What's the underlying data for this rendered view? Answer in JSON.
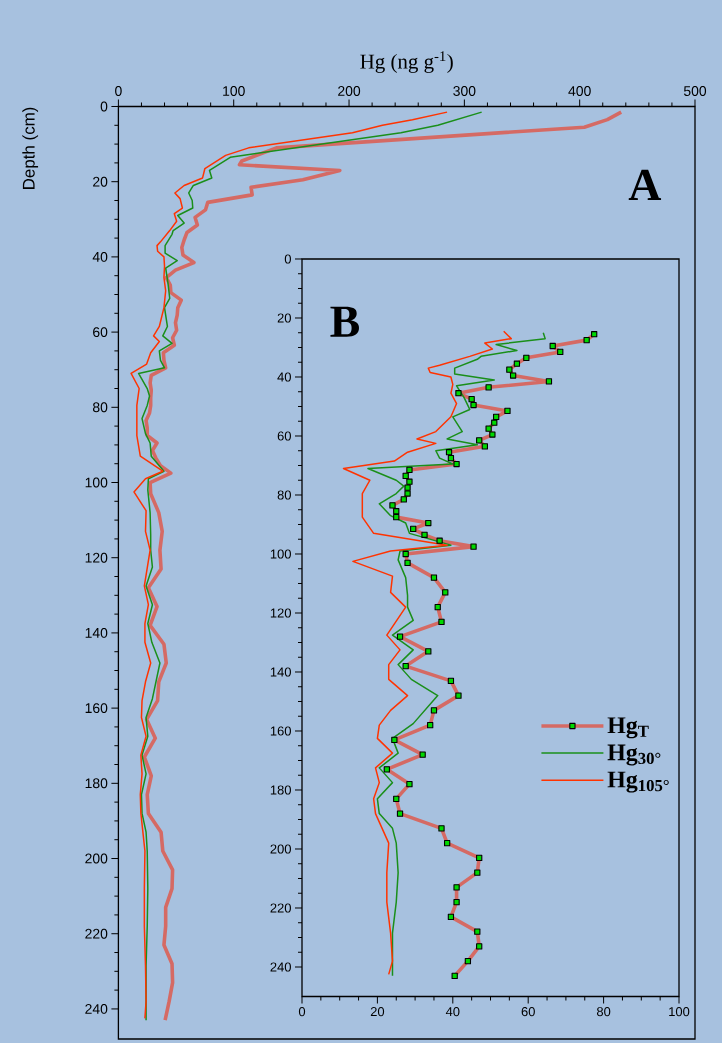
{
  "chart_data": [
    {
      "type": "line",
      "xlabel": "Hg (ng g$^{-1}$)",
      "ylabel": "Depth (cm)",
      "annotations": [
        "A"
      ],
      "xlim": [
        0,
        500
      ],
      "xticks": [
        0,
        100,
        200,
        300,
        400,
        500
      ],
      "ylim": [
        248,
        0
      ],
      "yticks": [
        0,
        20,
        40,
        60,
        80,
        100,
        120,
        140,
        160,
        180,
        200,
        220,
        240
      ],
      "series": [
        {
          "color": "#d56a64",
          "x": [
            436,
            424,
            404,
            137,
            107,
            105,
            192,
            160,
            115,
            116,
            77.5,
            75.5,
            66.5,
            68.5,
            59.5,
            57,
            55,
            56,
            65.5,
            49.5,
            41.5,
            45,
            45.5,
            54.5,
            51.5,
            51,
            49.5,
            50.5,
            47,
            48.5,
            39,
            39.5,
            41,
            28.5,
            27.5,
            28.5,
            28,
            28,
            27,
            24,
            25,
            25,
            33.5,
            29.5,
            32.5,
            36.5,
            45.5,
            27.5,
            28,
            35,
            38,
            36,
            37,
            26,
            33.5,
            27.5,
            39.5,
            41.5,
            35,
            34,
            24.5,
            32,
            22.5,
            28.5,
            25,
            26,
            37,
            38.5,
            47,
            46.5,
            41,
            41,
            39.5,
            46.5,
            47,
            44,
            40.5
          ],
          "values": [
            1.5,
            3.5,
            5.5,
            11,
            14.5,
            15.5,
            17,
            19.5,
            21.5,
            23.5,
            25.5,
            27.5,
            29.5,
            31.5,
            33.5,
            35.5,
            37.5,
            39.5,
            41.5,
            43.5,
            45.5,
            47.5,
            49.5,
            51.5,
            53.5,
            55.5,
            57.5,
            59.5,
            61.5,
            63.5,
            65.5,
            67.5,
            69.5,
            71.5,
            73.5,
            75.5,
            77.5,
            79.5,
            81.5,
            83.5,
            85.5,
            87.5,
            89.5,
            91.5,
            93.5,
            95.5,
            97.5,
            100,
            103,
            108,
            113,
            118,
            123,
            128,
            133,
            138,
            143,
            148,
            153,
            158,
            163,
            168,
            173,
            178,
            183,
            188,
            193,
            198,
            203,
            208,
            213,
            218,
            223,
            228,
            233,
            238,
            243
          ]
        },
        {
          "color": "#1a8f1a",
          "x": [
            315,
            277,
            245,
            97,
            79,
            81,
            65,
            61,
            64,
            64.5,
            51.5,
            57,
            47.5,
            46.5,
            40.5,
            40.5,
            51,
            41,
            43,
            44.5,
            40,
            42.5,
            38.5,
            46.5,
            35.5,
            36.5,
            40,
            17.5,
            25,
            27,
            25,
            20.5,
            23.5,
            27.5,
            28.5,
            39.5,
            26,
            25.5,
            27.5,
            28,
            28,
            29.5,
            24,
            29.5,
            25.5,
            29,
            36,
            29.5,
            24,
            25.5,
            20.5,
            24,
            20,
            20.5,
            24,
            25,
            25.5,
            25,
            24,
            24
          ],
          "values": [
            1.5,
            5,
            7,
            13.5,
            17,
            19,
            21,
            23,
            25,
            27,
            29,
            31,
            33,
            34,
            37,
            39,
            41,
            43,
            47,
            51,
            53.5,
            58.5,
            61,
            63,
            65,
            67.5,
            69.5,
            71,
            75,
            77,
            79.5,
            83,
            87,
            89.5,
            93,
            97,
            99,
            102,
            108,
            114,
            118,
            122.5,
            127.5,
            132.5,
            137.5,
            142.5,
            148,
            157.5,
            162.5,
            167.5,
            172.5,
            177.5,
            183,
            188,
            193,
            198,
            208,
            218,
            228.5,
            243
          ]
        },
        {
          "color": "#ff3300",
          "x": [
            285,
            255,
            229,
            203,
            113,
            93,
            75,
            73,
            57,
            49,
            53.5,
            55.5,
            48.5,
            50.5,
            44.5,
            36.5,
            33.5,
            34,
            39.5,
            40,
            39.5,
            41,
            39.5,
            35.5,
            30.5,
            35.5,
            28,
            24.5,
            11,
            18,
            16,
            16,
            19,
            38.5,
            23.5,
            13.5,
            24,
            23.5,
            27.5,
            22.5,
            26,
            23,
            23,
            28,
            23.5,
            20.5,
            20,
            24,
            19.5,
            20.5,
            19,
            19.5,
            23,
            22.5,
            22.5,
            23.5,
            24,
            23
          ],
          "values": [
            1.5,
            3.5,
            5,
            7,
            11,
            13,
            16.5,
            19,
            21,
            23,
            24.5,
            27,
            28.5,
            30.5,
            33,
            36,
            37,
            38.5,
            40,
            42.5,
            45.5,
            49,
            53.5,
            58.5,
            61,
            62.5,
            65.5,
            68.5,
            71,
            75,
            79.5,
            87.5,
            93,
            97,
            99,
            102.5,
            107.5,
            113,
            118,
            127.5,
            132.5,
            137.5,
            142.5,
            148,
            153,
            158,
            162.5,
            167.5,
            172.5,
            177.5,
            183,
            188,
            198,
            208,
            218,
            228.5,
            238,
            242.5
          ]
        }
      ]
    },
    {
      "type": "line",
      "annotations": [
        "B"
      ],
      "legend": "right",
      "xlim": [
        0,
        100
      ],
      "xticks": [
        0,
        20,
        40,
        60,
        80,
        100
      ],
      "ylim": [
        250,
        0
      ],
      "yticks": [
        0,
        20,
        40,
        60,
        80,
        100,
        120,
        140,
        160,
        180,
        200,
        220,
        240
      ],
      "series": [
        {
          "name": "Hg$_{T}$",
          "color": "#d56a64",
          "marker": "square",
          "x": [
            77.5,
            75.5,
            66.5,
            68.5,
            59.5,
            57,
            55,
            56,
            65.5,
            49.5,
            41.5,
            45,
            45.5,
            54.5,
            51.5,
            51,
            49.5,
            50.5,
            47,
            48.5,
            39,
            39.5,
            41,
            28.5,
            27.5,
            28.5,
            28,
            28,
            27,
            24,
            25,
            25,
            33.5,
            29.5,
            32.5,
            36.5,
            45.5,
            27.5,
            28,
            35,
            38,
            36,
            37,
            26,
            33.5,
            27.5,
            39.5,
            41.5,
            35,
            34,
            24.5,
            32,
            22.5,
            28.5,
            25,
            26,
            37,
            38.5,
            47,
            46.5,
            41,
            41,
            39.5,
            46.5,
            47,
            44,
            40.5
          ],
          "values": [
            25.5,
            27.5,
            29.5,
            31.5,
            33.5,
            35.5,
            37.5,
            39.5,
            41.5,
            43.5,
            45.5,
            47.5,
            49.5,
            51.5,
            53.5,
            55.5,
            57.5,
            59.5,
            61.5,
            63.5,
            65.5,
            67.5,
            69.5,
            71.5,
            73.5,
            75.5,
            77.5,
            79.5,
            81.5,
            83.5,
            85.5,
            87.5,
            89.5,
            91.5,
            93.5,
            95.5,
            97.5,
            100,
            103,
            108,
            113,
            118,
            123,
            128,
            133,
            138,
            143,
            148,
            153,
            158,
            163,
            168,
            173,
            178,
            183,
            188,
            193,
            198,
            203,
            208,
            213,
            218,
            223,
            228,
            233,
            238,
            243
          ]
        },
        {
          "name": "Hg$_{30°}$",
          "color": "#1a8f1a",
          "x": [
            64,
            64.5,
            51.5,
            57,
            47.5,
            46.5,
            40.5,
            40.5,
            51,
            41,
            43,
            44.5,
            40,
            42.5,
            38.5,
            46.5,
            35.5,
            36.5,
            40,
            17.5,
            25,
            27,
            25,
            20.5,
            23.5,
            27.5,
            28.5,
            39.5,
            26,
            25.5,
            27.5,
            28,
            28,
            29.5,
            24,
            29.5,
            25.5,
            29,
            36,
            29.5,
            24,
            25.5,
            20.5,
            24,
            20,
            20.5,
            24,
            25,
            25.5,
            25,
            24,
            24
          ],
          "values": [
            25,
            27,
            29,
            31,
            33,
            34,
            37,
            39,
            41,
            43,
            47,
            51,
            53.5,
            58.5,
            61,
            63,
            65,
            67.5,
            69.5,
            71,
            75,
            77,
            79.5,
            83,
            87,
            89.5,
            93,
            97,
            99,
            102,
            108,
            114,
            118,
            122.5,
            127.5,
            132.5,
            137.5,
            142.5,
            148,
            157.5,
            162.5,
            167.5,
            172.5,
            177.5,
            183,
            188,
            193,
            198,
            208,
            218,
            228.5,
            243
          ]
        },
        {
          "name": "Hg$_{105°}$",
          "color": "#ff3300",
          "x": [
            53.5,
            55.5,
            48.5,
            50.5,
            44.5,
            36.5,
            33.5,
            34,
            39.5,
            40,
            39.5,
            41,
            39.5,
            35.5,
            30.5,
            35.5,
            28,
            24.5,
            11,
            18,
            16,
            16,
            19,
            38.5,
            23.5,
            13.5,
            24,
            23.5,
            27.5,
            22.5,
            26,
            23,
            23,
            28,
            23.5,
            20.5,
            20,
            24,
            19.5,
            20.5,
            19,
            19.5,
            23,
            22.5,
            22.5,
            23.5,
            24,
            23
          ],
          "values": [
            24.5,
            27,
            28.5,
            30.5,
            33,
            36,
            37,
            38.5,
            40,
            42.5,
            45.5,
            49,
            53.5,
            58.5,
            61,
            62.5,
            65.5,
            68.5,
            71,
            75,
            79.5,
            87.5,
            93,
            97,
            99,
            102.5,
            107.5,
            113,
            118,
            127.5,
            132.5,
            137.5,
            142.5,
            148,
            153,
            158,
            162.5,
            167.5,
            172.5,
            177.5,
            183,
            188,
            198,
            208,
            218,
            228.5,
            238,
            242.5
          ]
        }
      ]
    }
  ]
}
